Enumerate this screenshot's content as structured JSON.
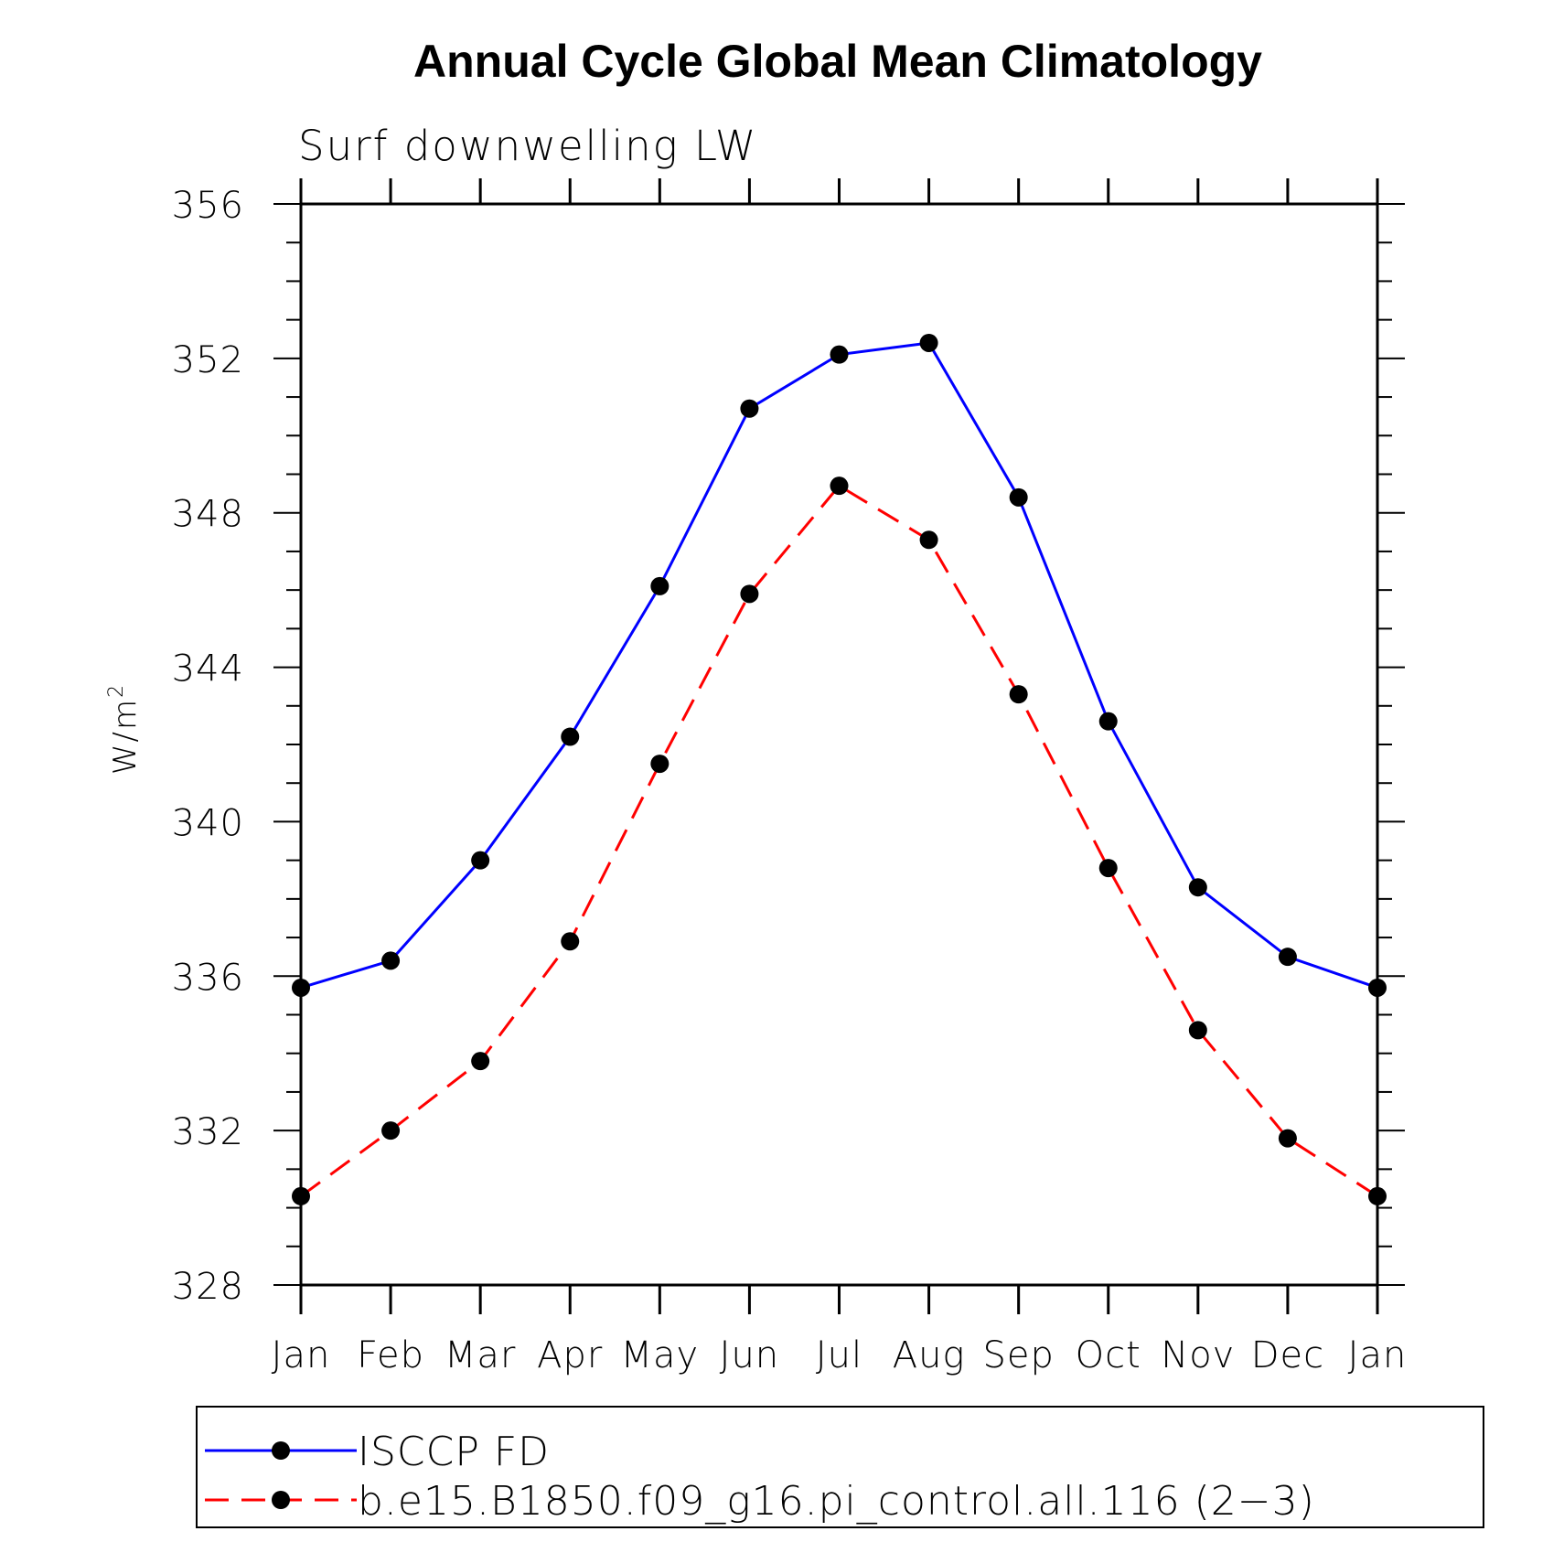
{
  "chart_data": {
    "type": "line",
    "title": "Annual Cycle Global Mean Climatology",
    "subtitle": "Surf downwelling LW",
    "ylabel": "W/m",
    "ylabel_superscript": "2",
    "categories": [
      "Jan",
      "Feb",
      "Mar",
      "Apr",
      "May",
      "Jun",
      "Jul",
      "Aug",
      "Sep",
      "Oct",
      "Nov",
      "Dec",
      "Jan"
    ],
    "ylim": [
      328,
      356
    ],
    "yticks": [
      328,
      332,
      336,
      340,
      344,
      348,
      352,
      356
    ],
    "series": [
      {
        "name": "ISCCP FD",
        "color": "#0000ff",
        "dash": "solid",
        "marker": "filled-circle",
        "values": [
          335.7,
          336.4,
          339.0,
          342.2,
          346.1,
          350.7,
          352.1,
          352.4,
          348.4,
          342.6,
          338.3,
          336.5,
          335.7
        ]
      },
      {
        "name": "b.e15.B1850.f09_g16.pi_control.all.116 (2−3)",
        "color": "#ff0000",
        "dash": "dashed",
        "marker": "filled-circle",
        "values": [
          330.3,
          332.0,
          333.8,
          336.9,
          341.5,
          345.9,
          348.7,
          347.3,
          343.3,
          338.8,
          334.6,
          331.8,
          330.3
        ]
      }
    ],
    "grid": false,
    "legend_position": "bottom"
  }
}
